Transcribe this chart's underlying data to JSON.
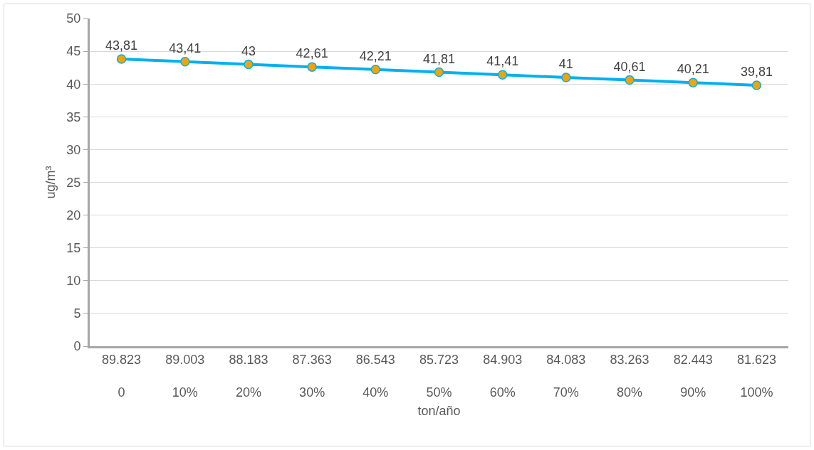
{
  "chart_data": {
    "type": "line",
    "xlabel": "ton/año",
    "ylabel": "ug/m³",
    "categories": [
      "89.823\n0",
      "89.003\n10%",
      "88.183\n20%",
      "87.363\n30%",
      "86.543\n40%",
      "85.723\n50%",
      "84.903\n60%",
      "84.083\n70%",
      "83.263\n80%",
      "82.443\n90%",
      "81.623\n100%"
    ],
    "series": [
      {
        "color": "#00b0f0",
        "values": [
          43.81,
          43.41,
          43,
          42.61,
          42.21,
          41.81,
          41.41,
          41,
          40.61,
          40.21,
          39.81
        ],
        "value_labels": [
          "43,81",
          "43,41",
          "43",
          "42,61",
          "42,21",
          "41,81",
          "41,41",
          "41",
          "40,61",
          "40,21",
          "39,81"
        ]
      }
    ],
    "ylim": [
      0,
      50
    ],
    "yticks": [
      0,
      5,
      10,
      15,
      20,
      25,
      30,
      35,
      40,
      45,
      50
    ],
    "grid": "y",
    "legend": false,
    "marker": "circle",
    "line_style": "solid"
  }
}
